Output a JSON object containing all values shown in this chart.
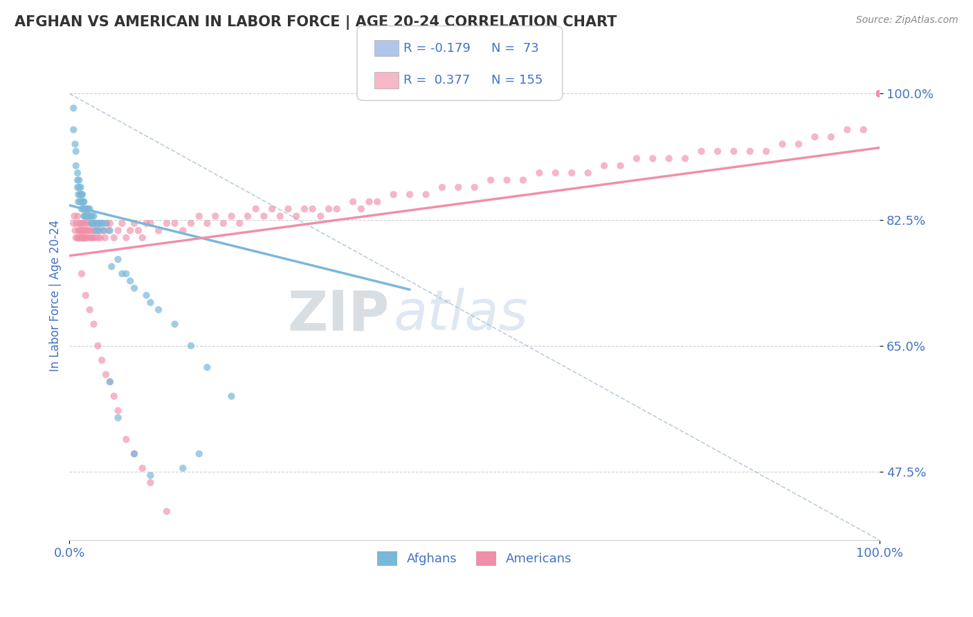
{
  "title": "AFGHAN VS AMERICAN IN LABOR FORCE | AGE 20-24 CORRELATION CHART",
  "source_text": "Source: ZipAtlas.com",
  "ylabel": "In Labor Force | Age 20-24",
  "legend_entries": [
    {
      "label_r": "R = -0.179",
      "label_n": "N =  73",
      "color": "#aec6e8"
    },
    {
      "label_r": "R =  0.377",
      "label_n": "N = 155",
      "color": "#f4b8c8"
    }
  ],
  "legend_bottom": [
    "Afghans",
    "Americans"
  ],
  "afghan_color": "#7ab8d9",
  "american_color": "#f090a8",
  "afghan_line": {
    "x0": 0.0,
    "y0": 0.845,
    "x1": 0.42,
    "y1": 0.728
  },
  "american_line": {
    "x0": 0.0,
    "y0": 0.775,
    "x1": 1.0,
    "y1": 0.925
  },
  "diagonal_line": {
    "x0": 0.0,
    "y0": 1.0,
    "x1": 1.0,
    "y1": 0.38
  },
  "xlim": [
    0.0,
    1.0
  ],
  "ylim": [
    0.38,
    1.06
  ],
  "y_ticks": [
    0.475,
    0.65,
    0.825,
    1.0
  ],
  "y_labels": [
    "47.5%",
    "65.0%",
    "82.5%",
    "100.0%"
  ],
  "background_color": "#ffffff",
  "grid_color": "#cccccc",
  "title_color": "#333333",
  "axis_label_color": "#4472c4",
  "tick_label_color": "#4472c4",
  "source_color": "#888888",
  "watermark_zip": "ZIP",
  "watermark_atlas": "atlas",
  "afghan_pts": {
    "x": [
      0.005,
      0.005,
      0.007,
      0.008,
      0.008,
      0.01,
      0.01,
      0.01,
      0.011,
      0.011,
      0.012,
      0.012,
      0.013,
      0.013,
      0.014,
      0.014,
      0.015,
      0.015,
      0.015,
      0.016,
      0.016,
      0.017,
      0.017,
      0.018,
      0.018,
      0.018,
      0.019,
      0.019,
      0.02,
      0.02,
      0.021,
      0.021,
      0.022,
      0.022,
      0.023,
      0.023,
      0.024,
      0.025,
      0.025,
      0.026,
      0.027,
      0.028,
      0.028,
      0.03,
      0.03,
      0.032,
      0.033,
      0.035,
      0.036,
      0.038,
      0.04,
      0.042,
      0.045,
      0.05,
      0.052,
      0.06,
      0.065,
      0.07,
      0.075,
      0.08,
      0.095,
      0.1,
      0.11,
      0.13,
      0.15,
      0.17,
      0.2,
      0.05,
      0.06,
      0.08,
      0.1,
      0.14,
      0.16
    ],
    "y": [
      0.98,
      0.95,
      0.93,
      0.92,
      0.9,
      0.89,
      0.88,
      0.87,
      0.86,
      0.85,
      0.88,
      0.87,
      0.86,
      0.85,
      0.87,
      0.86,
      0.86,
      0.85,
      0.84,
      0.86,
      0.85,
      0.85,
      0.84,
      0.84,
      0.83,
      0.85,
      0.83,
      0.84,
      0.84,
      0.83,
      0.83,
      0.84,
      0.83,
      0.84,
      0.83,
      0.84,
      0.83,
      0.83,
      0.84,
      0.83,
      0.82,
      0.83,
      0.82,
      0.83,
      0.82,
      0.82,
      0.81,
      0.82,
      0.81,
      0.82,
      0.82,
      0.81,
      0.82,
      0.81,
      0.76,
      0.77,
      0.75,
      0.75,
      0.74,
      0.73,
      0.72,
      0.71,
      0.7,
      0.68,
      0.65,
      0.62,
      0.58,
      0.6,
      0.55,
      0.5,
      0.47,
      0.48,
      0.5
    ]
  },
  "american_pts": {
    "x": [
      0.005,
      0.006,
      0.007,
      0.008,
      0.009,
      0.01,
      0.01,
      0.011,
      0.011,
      0.012,
      0.012,
      0.013,
      0.013,
      0.014,
      0.014,
      0.015,
      0.015,
      0.016,
      0.016,
      0.017,
      0.017,
      0.018,
      0.018,
      0.019,
      0.019,
      0.02,
      0.02,
      0.021,
      0.022,
      0.022,
      0.023,
      0.024,
      0.025,
      0.026,
      0.027,
      0.028,
      0.029,
      0.03,
      0.031,
      0.032,
      0.033,
      0.035,
      0.036,
      0.037,
      0.038,
      0.04,
      0.042,
      0.044,
      0.046,
      0.048,
      0.05,
      0.055,
      0.06,
      0.065,
      0.07,
      0.075,
      0.08,
      0.085,
      0.09,
      0.095,
      0.1,
      0.11,
      0.12,
      0.13,
      0.14,
      0.15,
      0.16,
      0.17,
      0.18,
      0.19,
      0.2,
      0.21,
      0.22,
      0.23,
      0.24,
      0.25,
      0.26,
      0.27,
      0.28,
      0.29,
      0.3,
      0.31,
      0.32,
      0.33,
      0.35,
      0.36,
      0.37,
      0.38,
      0.4,
      0.42,
      0.44,
      0.46,
      0.48,
      0.5,
      0.52,
      0.54,
      0.56,
      0.58,
      0.6,
      0.62,
      0.64,
      0.66,
      0.68,
      0.7,
      0.72,
      0.74,
      0.76,
      0.78,
      0.8,
      0.82,
      0.84,
      0.86,
      0.88,
      0.9,
      0.92,
      0.94,
      0.96,
      0.98,
      1.0,
      1.0,
      1.0,
      1.0,
      1.0,
      1.0,
      1.0,
      1.0,
      1.0,
      1.0,
      1.0,
      1.0,
      1.0,
      1.0,
      1.0,
      1.0,
      1.0,
      1.0,
      1.0,
      1.0,
      1.0,
      1.0,
      0.015,
      0.02,
      0.025,
      0.03,
      0.035,
      0.04,
      0.045,
      0.05,
      0.055,
      0.06,
      0.07,
      0.08,
      0.09,
      0.1,
      0.12
    ],
    "y": [
      0.82,
      0.83,
      0.81,
      0.8,
      0.82,
      0.83,
      0.8,
      0.81,
      0.8,
      0.82,
      0.8,
      0.81,
      0.8,
      0.81,
      0.82,
      0.8,
      0.81,
      0.8,
      0.81,
      0.8,
      0.82,
      0.8,
      0.81,
      0.8,
      0.82,
      0.81,
      0.8,
      0.81,
      0.8,
      0.82,
      0.81,
      0.8,
      0.81,
      0.82,
      0.8,
      0.81,
      0.8,
      0.81,
      0.8,
      0.82,
      0.81,
      0.8,
      0.82,
      0.81,
      0.8,
      0.82,
      0.81,
      0.8,
      0.82,
      0.81,
      0.82,
      0.8,
      0.81,
      0.82,
      0.8,
      0.81,
      0.82,
      0.81,
      0.8,
      0.82,
      0.82,
      0.81,
      0.82,
      0.82,
      0.81,
      0.82,
      0.83,
      0.82,
      0.83,
      0.82,
      0.83,
      0.82,
      0.83,
      0.84,
      0.83,
      0.84,
      0.83,
      0.84,
      0.83,
      0.84,
      0.84,
      0.83,
      0.84,
      0.84,
      0.85,
      0.84,
      0.85,
      0.85,
      0.86,
      0.86,
      0.86,
      0.87,
      0.87,
      0.87,
      0.88,
      0.88,
      0.88,
      0.89,
      0.89,
      0.89,
      0.89,
      0.9,
      0.9,
      0.91,
      0.91,
      0.91,
      0.91,
      0.92,
      0.92,
      0.92,
      0.92,
      0.92,
      0.93,
      0.93,
      0.94,
      0.94,
      0.95,
      0.95,
      1.0,
      1.0,
      1.0,
      1.0,
      1.0,
      1.0,
      1.0,
      1.0,
      1.0,
      1.0,
      1.0,
      1.0,
      1.0,
      1.0,
      1.0,
      1.0,
      1.0,
      1.0,
      1.0,
      1.0,
      1.0,
      1.0,
      0.75,
      0.72,
      0.7,
      0.68,
      0.65,
      0.63,
      0.61,
      0.6,
      0.58,
      0.56,
      0.52,
      0.5,
      0.48,
      0.46,
      0.42
    ]
  }
}
